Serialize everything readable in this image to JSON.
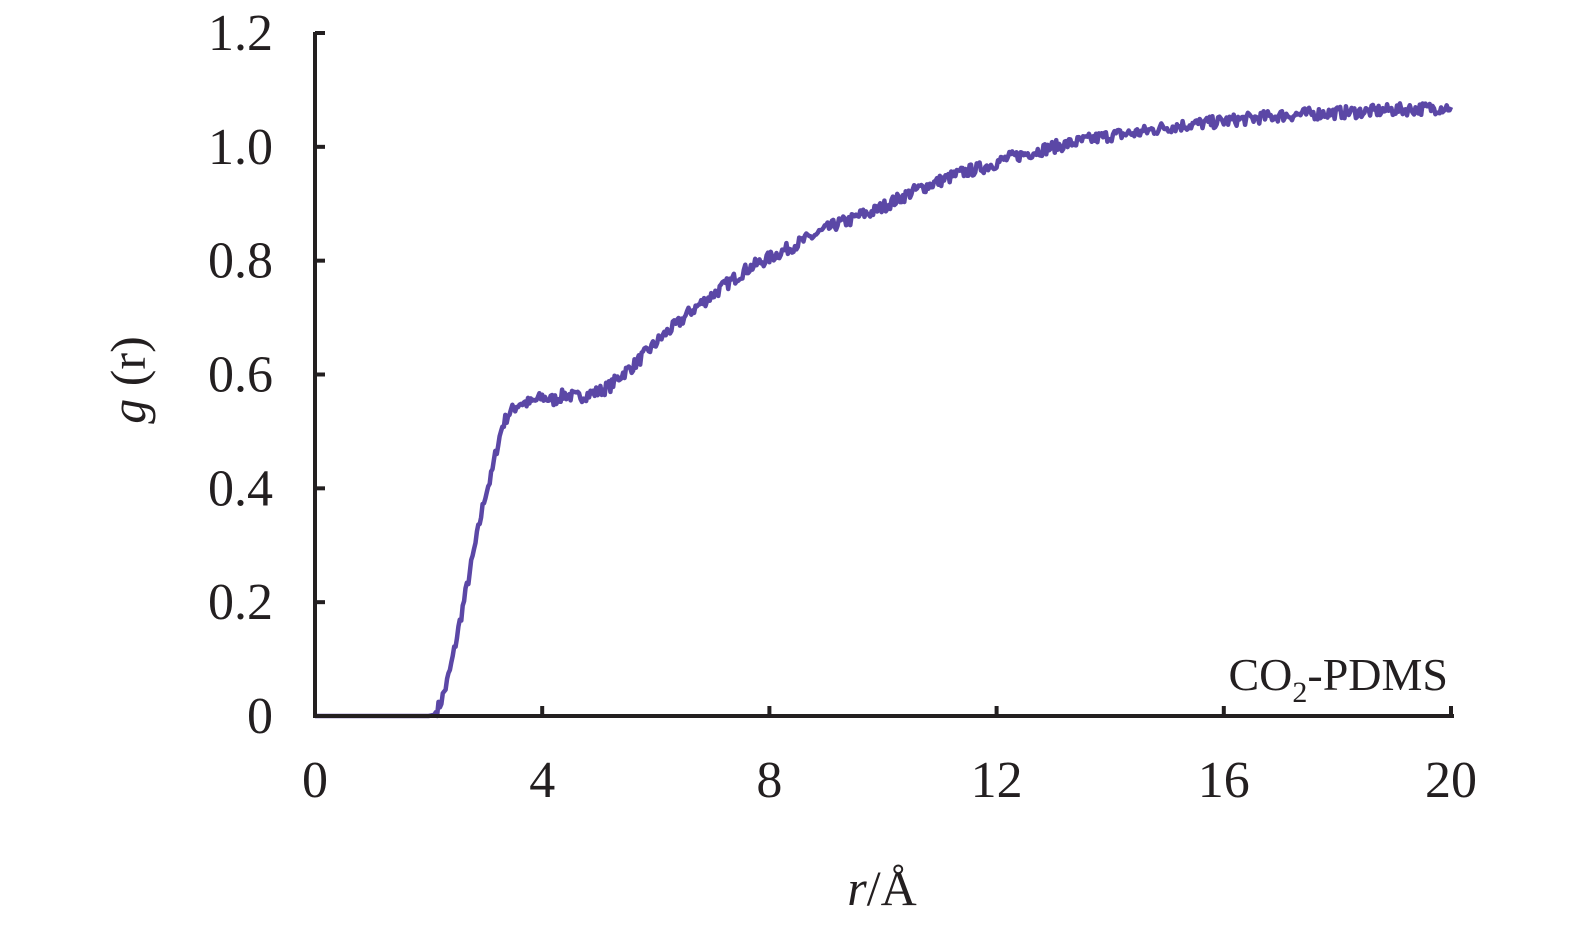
{
  "chart_data": {
    "type": "line",
    "title": "",
    "xlabel": {
      "var": "r",
      "unit": "/Å"
    },
    "ylabel": {
      "var": "g",
      "rest": " (r)"
    },
    "xlim": [
      0,
      20
    ],
    "ylim": [
      0,
      1.2
    ],
    "xticks": [
      0,
      4,
      8,
      12,
      16,
      20
    ],
    "xtick_labels": [
      "0",
      "4",
      "8",
      "12",
      "16",
      "20"
    ],
    "yticks": [
      0,
      0.2,
      0.4,
      0.6,
      0.8,
      1.0,
      1.2
    ],
    "ytick_labels": [
      "0",
      "0.2",
      "0.4",
      "0.6",
      "0.8",
      "1.0",
      "1.2"
    ],
    "grid": false,
    "annotation": {
      "base": "CO",
      "sub": "2",
      "rest": "-PDMS"
    },
    "series": [
      {
        "color": "#5b47a6",
        "x": [
          0.0,
          0.5,
          1.0,
          1.5,
          2.0,
          2.1,
          2.2,
          2.3,
          2.4,
          2.5,
          2.6,
          2.7,
          2.8,
          2.9,
          3.0,
          3.1,
          3.2,
          3.3,
          3.4,
          3.5,
          3.6,
          3.8,
          4.0,
          4.2,
          4.4,
          4.6,
          4.8,
          5.0,
          5.2,
          5.4,
          5.6,
          5.8,
          6.0,
          6.2,
          6.4,
          6.6,
          6.8,
          7.0,
          7.2,
          7.4,
          7.6,
          7.8,
          8.0,
          8.2,
          8.4,
          8.6,
          8.8,
          9.0,
          9.2,
          9.4,
          9.6,
          9.8,
          10.0,
          10.3,
          10.6,
          11.0,
          11.4,
          11.8,
          12.2,
          12.6,
          13.0,
          13.5,
          14.0,
          14.5,
          15.0,
          15.5,
          16.0,
          16.5,
          17.0,
          17.5,
          18.0,
          18.5,
          19.0,
          19.5,
          20.0
        ],
        "y": [
          0.0,
          0.0,
          0.0,
          0.0,
          0.0,
          0.002,
          0.02,
          0.05,
          0.09,
          0.14,
          0.19,
          0.24,
          0.29,
          0.34,
          0.39,
          0.42,
          0.47,
          0.51,
          0.53,
          0.54,
          0.55,
          0.55,
          0.56,
          0.555,
          0.565,
          0.56,
          0.565,
          0.57,
          0.58,
          0.6,
          0.615,
          0.635,
          0.655,
          0.675,
          0.69,
          0.71,
          0.725,
          0.74,
          0.755,
          0.77,
          0.785,
          0.795,
          0.805,
          0.815,
          0.825,
          0.835,
          0.845,
          0.855,
          0.865,
          0.87,
          0.88,
          0.885,
          0.895,
          0.91,
          0.925,
          0.94,
          0.955,
          0.965,
          0.98,
          0.99,
          1.0,
          1.01,
          1.02,
          1.025,
          1.035,
          1.04,
          1.045,
          1.05,
          1.055,
          1.058,
          1.06,
          1.062,
          1.065,
          1.067,
          1.07
        ]
      }
    ]
  }
}
